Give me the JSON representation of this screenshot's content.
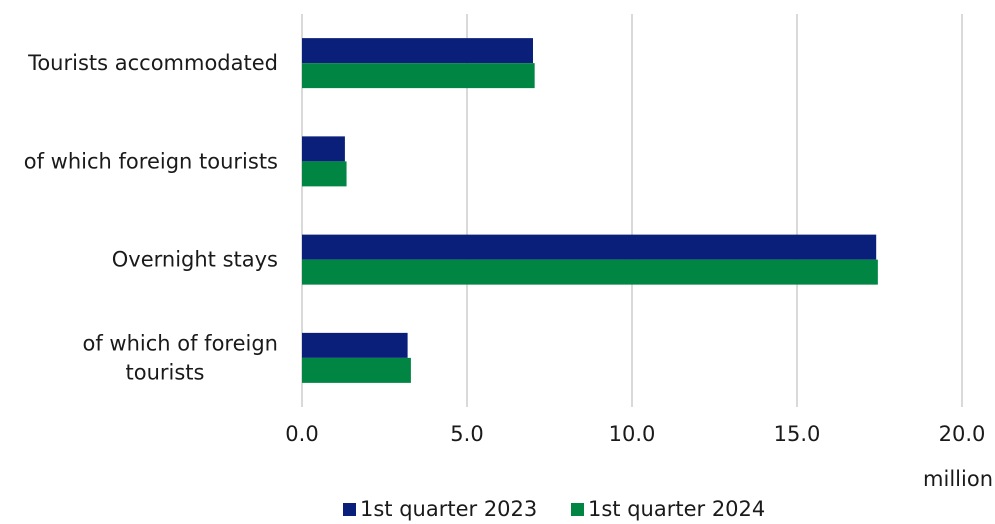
{
  "chart_data": {
    "type": "bar",
    "orientation": "horizontal",
    "categories": [
      [
        "Tourists accommodated"
      ],
      [
        "of which foreign tourists"
      ],
      [
        "Overnight stays"
      ],
      [
        "of which of foreign",
        "tourists"
      ]
    ],
    "series": [
      {
        "name": "1st quarter 2023",
        "color": "#0a1f7a",
        "values": [
          7.0,
          1.3,
          17.4,
          3.2
        ]
      },
      {
        "name": "1st quarter 2024",
        "color": "#008542",
        "values": [
          7.05,
          1.35,
          17.45,
          3.3
        ]
      }
    ],
    "xlim": [
      0,
      20
    ],
    "xticks": [
      "0.0",
      "5.0",
      "10.0",
      "15.0",
      "20.0"
    ],
    "xtick_values": [
      0,
      5,
      10,
      15,
      20
    ],
    "unit": "million",
    "grid": true,
    "legend_position": "bottom-center"
  }
}
